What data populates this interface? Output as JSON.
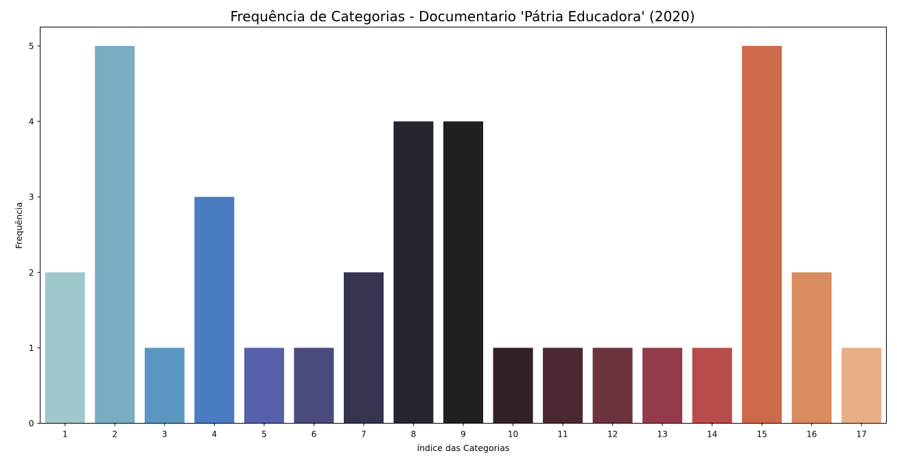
{
  "chart_data": {
    "type": "bar",
    "title": "Frequência de Categorias - Documentario 'Pátria Educadora' (2020)",
    "xlabel": "índice das Categorias",
    "ylabel": "Frequência",
    "categories": [
      "1",
      "2",
      "3",
      "4",
      "5",
      "6",
      "7",
      "8",
      "9",
      "10",
      "11",
      "12",
      "13",
      "14",
      "15",
      "16",
      "17"
    ],
    "values": [
      2,
      5,
      1,
      3,
      1,
      1,
      2,
      4,
      4,
      1,
      1,
      1,
      1,
      1,
      5,
      2,
      1
    ],
    "colors": [
      "#9fc8cc",
      "#78adc2",
      "#5b96c1",
      "#497cc0",
      "#5661aa",
      "#4b4a7c",
      "#35344f",
      "#26252f",
      "#202020",
      "#312125",
      "#4a2931",
      "#6c333f",
      "#933b4a",
      "#b84c4a",
      "#cc6a4a",
      "#d98c5d",
      "#e8ae87"
    ],
    "ylim": [
      0,
      5.25
    ],
    "yticks": [
      0,
      1,
      2,
      3,
      4,
      5
    ],
    "grid": false,
    "legend": "none"
  }
}
